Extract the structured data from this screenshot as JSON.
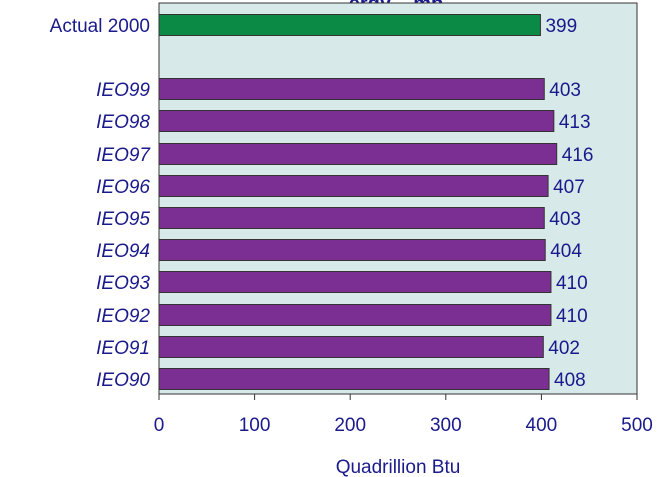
{
  "chart_data": {
    "type": "bar",
    "orientation": "horizontal",
    "title": "...ergy ...mp...",
    "categories": [
      "Actual 2000",
      "IEO99",
      "IEO98",
      "IEO97",
      "IEO96",
      "IEO95",
      "IEO94",
      "IEO93",
      "IEO92",
      "IEO91",
      "IEO90"
    ],
    "values": [
      399,
      403,
      413,
      416,
      407,
      403,
      404,
      410,
      410,
      402,
      408
    ],
    "bar_colors": [
      "#0b8a45",
      "#7b2f93",
      "#7b2f93",
      "#7b2f93",
      "#7b2f93",
      "#7b2f93",
      "#7b2f93",
      "#7b2f93",
      "#7b2f93",
      "#7b2f93",
      "#7b2f93"
    ],
    "italic_categories": [
      false,
      true,
      true,
      true,
      true,
      true,
      true,
      true,
      true,
      true,
      true
    ],
    "xlabel": "Quadrillion Btu",
    "ylabel": "",
    "xlim": [
      0,
      500
    ],
    "xticks": [
      0,
      100,
      200,
      300,
      400,
      500
    ],
    "grid": false,
    "plot_background": "#d8e9e9",
    "text_color": "#1a1a8c"
  }
}
